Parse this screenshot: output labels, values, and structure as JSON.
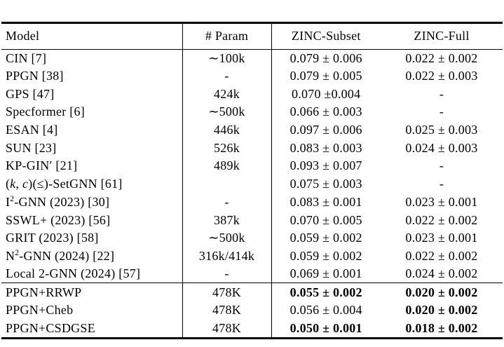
{
  "colors": {
    "background": "#ffffff",
    "text": "#000000",
    "rule": "#000000"
  },
  "table": {
    "columns": [
      "Model",
      "# Param",
      "ZINC-Subset",
      "ZINC-Full"
    ],
    "groups": [
      {
        "name": "baselines",
        "rows": [
          {
            "model": "CIN [7]",
            "param": "∼100k",
            "zinc_subset": "0.079 ± 0.006",
            "zinc_full": "0.022 ± 0.002"
          },
          {
            "model": "PPGN [38]",
            "param": "-",
            "zinc_subset": "0.079 ± 0.005",
            "zinc_full": "0.022 ± 0.003"
          },
          {
            "model": "GPS [47]",
            "param": "424k",
            "zinc_subset": "0.070 ±0.004",
            "zinc_full": "-"
          },
          {
            "model": "Specformer [6]",
            "param": "∼500k",
            "zinc_subset": "0.066 ± 0.003",
            "zinc_full": "-"
          },
          {
            "model": "ESAN [4]",
            "param": "446k",
            "zinc_subset": "0.097 ± 0.006",
            "zinc_full": "0.025 ± 0.003"
          },
          {
            "model": "SUN [23]",
            "param": "526k",
            "zinc_subset": "0.083 ± 0.003",
            "zinc_full": "0.024 ± 0.003"
          },
          {
            "model": "KP-GIN′ [21]",
            "param": "489k",
            "zinc_subset": "0.093 ± 0.007",
            "zinc_full": "-"
          },
          {
            "model": [
              {
                "t": "("
              },
              {
                "t": "k",
                "i": true
              },
              {
                "t": ", "
              },
              {
                "t": "c",
                "i": true
              },
              {
                "t": ")(≤)-SetGNN [61]"
              }
            ],
            "param": "",
            "zinc_subset": "0.075 ± 0.003",
            "zinc_full": "-"
          },
          {
            "model": [
              {
                "t": "I"
              },
              {
                "t": "2",
                "sup": true
              },
              {
                "t": "-GNN (2023) [30]"
              }
            ],
            "param": "-",
            "zinc_subset": "0.083 ± 0.001",
            "zinc_full": "0.023 ± 0.001"
          },
          {
            "model": "SSWL+ (2023) [56]",
            "param": "387k",
            "zinc_subset": "0.070 ± 0.005",
            "zinc_full": "0.022 ± 0.002"
          },
          {
            "model": "GRIT (2023) [58]",
            "param": "∼500k",
            "zinc_subset": "0.059 ± 0.002",
            "zinc_full": "0.023 ± 0.001"
          },
          {
            "model": [
              {
                "t": "N"
              },
              {
                "t": "2",
                "sup": true
              },
              {
                "t": "-GNN (2024) [22]"
              }
            ],
            "param": "316k/414k",
            "zinc_subset": "0.059 ± 0.002",
            "zinc_full": "0.022 ± 0.002"
          },
          {
            "model": "Local 2-GNN (2024) [57]",
            "param": "-",
            "zinc_subset": "0.069 ± 0.001",
            "zinc_full": "0.024 ± 0.002"
          }
        ]
      },
      {
        "name": "ours",
        "rows": [
          {
            "model": "PPGN+RRWP",
            "param": "478K",
            "zinc_subset": "0.055 ± 0.002",
            "zinc_full": "0.020 ± 0.002",
            "subset_bold": true,
            "full_bold": true
          },
          {
            "model": "PPGN+Cheb",
            "param": "478K",
            "zinc_subset": "0.056 ± 0.004",
            "zinc_full": "0.020 ± 0.002",
            "subset_bold": false,
            "full_bold": true
          },
          {
            "model": "PPGN+CSDGSE",
            "param": "478K",
            "zinc_subset": "0.050 ± 0.001",
            "zinc_full": "0.018 ± 0.002",
            "subset_bold": true,
            "full_bold": true
          }
        ]
      }
    ]
  }
}
